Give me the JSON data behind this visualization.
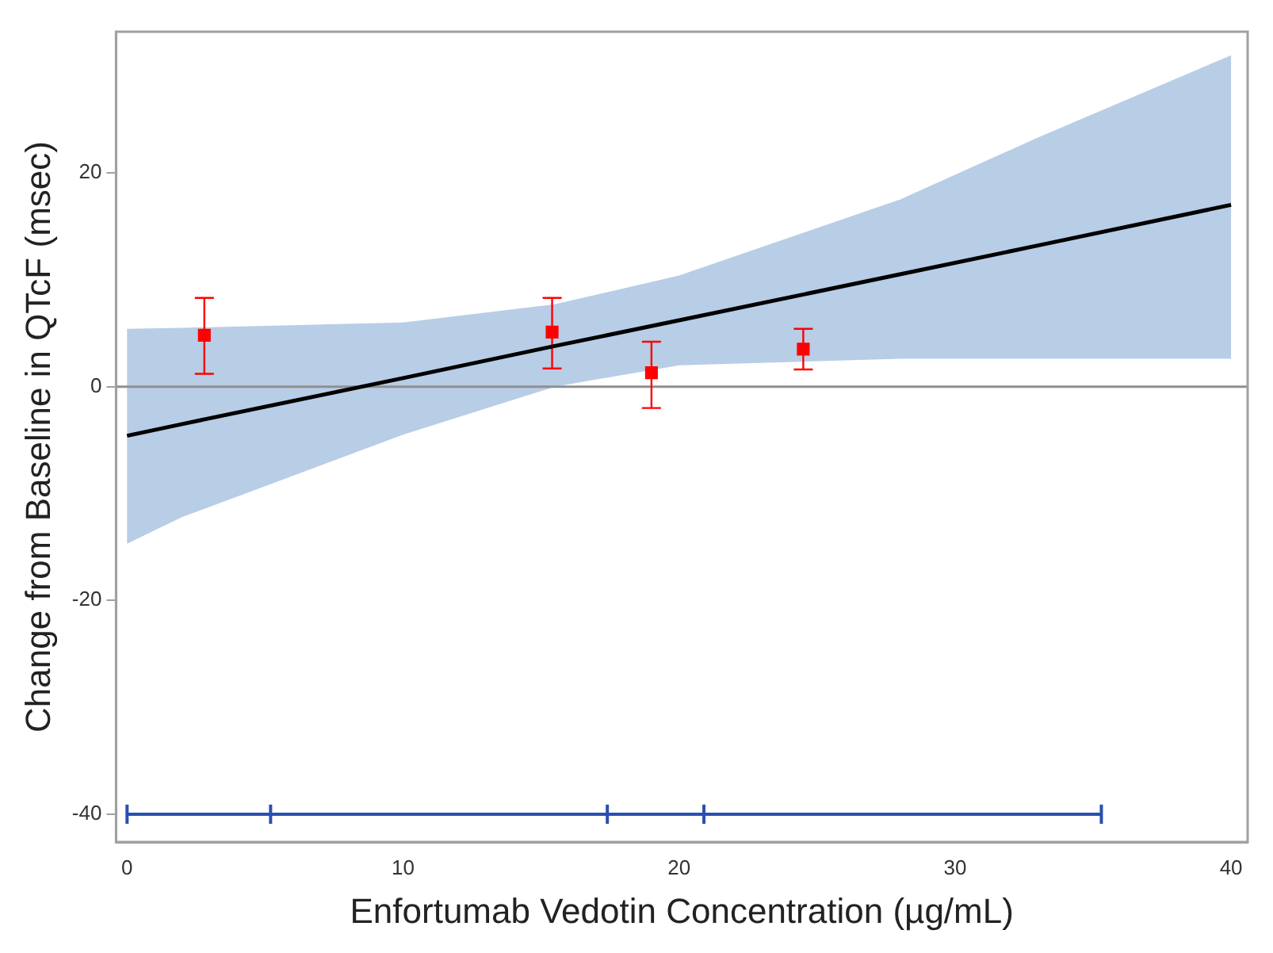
{
  "chart_data": {
    "type": "scatter",
    "xlabel": "Enfortumab Vedotin Concentration (µg/mL)",
    "ylabel": "Change from Baseline in QTcF (msec)",
    "xlim": [
      -0.4,
      40.6
    ],
    "ylim": [
      -42.6,
      33.2
    ],
    "xticks": [
      0,
      10,
      20,
      30,
      40
    ],
    "yticks": [
      -40,
      -20,
      0,
      20
    ],
    "grid": false,
    "legend": false,
    "marker": "square",
    "ref_lines": [
      {
        "axis": "y",
        "value": 0,
        "color": "#909090"
      }
    ],
    "series": [
      {
        "type": "line",
        "color": "#000000",
        "x": [
          0,
          2,
          10,
          15.5,
          20,
          28,
          33,
          40
        ],
        "values": [
          -4.6,
          -3.5,
          0.8,
          3.8,
          6.2,
          10.5,
          13.2,
          17.0
        ],
        "lower": [
          -14.7,
          -12.2,
          -4.5,
          0,
          2.0,
          2.6,
          2.6,
          2.6
        ],
        "upper": [
          5.4,
          5.5,
          6.0,
          7.7,
          10.4,
          17.5,
          23.3,
          31.0
        ],
        "marker": "none"
      },
      {
        "type": "scatter",
        "color": "#ff0000",
        "x": [
          2.8,
          15.4,
          19.0,
          24.5
        ],
        "values": [
          4.8,
          5.1,
          1.3,
          3.5
        ],
        "errors": [
          [
            1.2,
            8.3
          ],
          [
            1.7,
            8.3
          ],
          [
            -2.0,
            4.2
          ],
          [
            1.6,
            5.4
          ]
        ]
      },
      {
        "type": "line",
        "color": "#2850b0",
        "x": [
          0,
          5.2,
          17.4,
          20.9,
          35.3
        ],
        "values": [
          -40,
          -40,
          -40,
          -40,
          -40
        ],
        "errors": [
          0.9,
          0.9,
          0.9,
          0.9,
          0.9
        ],
        "marker": "none"
      }
    ]
  }
}
